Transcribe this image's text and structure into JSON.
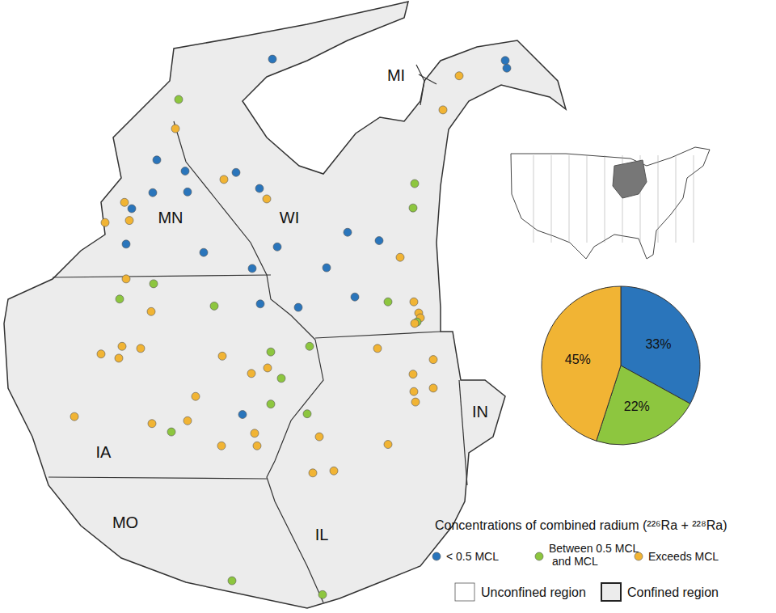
{
  "map": {
    "states": [
      "MN",
      "WI",
      "MI",
      "IA",
      "MO",
      "IL",
      "IN"
    ],
    "legend": {
      "title": "Concentrations of combined radium (²²⁶Ra + ²²⁸Ra)",
      "regions": [
        "Unconfined region",
        "Confined region"
      ]
    },
    "points": [
      {
        "lon": -92.26,
        "lat": 46.61,
        "class": 0
      },
      {
        "lon": -86.5,
        "lat": 46.59,
        "class": 0
      },
      {
        "lon": -86.46,
        "lat": 46.48,
        "class": 0
      },
      {
        "lon": -87.64,
        "lat": 46.37,
        "class": 2
      },
      {
        "lon": -94.58,
        "lat": 46.03,
        "class": 1
      },
      {
        "lon": -88.04,
        "lat": 45.88,
        "class": 2
      },
      {
        "lon": -94.66,
        "lat": 45.61,
        "class": 2
      },
      {
        "lon": -95.12,
        "lat": 45.16,
        "class": 0
      },
      {
        "lon": -93.16,
        "lat": 44.98,
        "class": 0
      },
      {
        "lon": -94.42,
        "lat": 45.0,
        "class": 0
      },
      {
        "lon": -93.46,
        "lat": 44.88,
        "class": 2
      },
      {
        "lon": -95.22,
        "lat": 44.69,
        "class": 0
      },
      {
        "lon": -92.58,
        "lat": 44.75,
        "class": 0
      },
      {
        "lon": -94.36,
        "lat": 44.7,
        "class": 0
      },
      {
        "lon": -92.4,
        "lat": 44.6,
        "class": 2
      },
      {
        "lon": -95.92,
        "lat": 44.55,
        "class": 2
      },
      {
        "lon": -95.74,
        "lat": 44.46,
        "class": 0
      },
      {
        "lon": -88.74,
        "lat": 44.82,
        "class": 1
      },
      {
        "lon": -88.78,
        "lat": 44.47,
        "class": 1
      },
      {
        "lon": -96.4,
        "lat": 44.26,
        "class": 2
      },
      {
        "lon": -95.8,
        "lat": 44.29,
        "class": 2
      },
      {
        "lon": -90.4,
        "lat": 44.12,
        "class": 0
      },
      {
        "lon": -95.88,
        "lat": 43.95,
        "class": 0
      },
      {
        "lon": -93.96,
        "lat": 43.83,
        "class": 0
      },
      {
        "lon": -92.14,
        "lat": 43.91,
        "class": 0
      },
      {
        "lon": -89.62,
        "lat": 44.0,
        "class": 0
      },
      {
        "lon": -89.1,
        "lat": 43.76,
        "class": 2
      },
      {
        "lon": -90.92,
        "lat": 43.61,
        "class": 0
      },
      {
        "lon": -92.76,
        "lat": 43.6,
        "class": 0
      },
      {
        "lon": -95.88,
        "lat": 43.45,
        "class": 2
      },
      {
        "lon": -95.2,
        "lat": 43.38,
        "class": 1
      },
      {
        "lon": -90.22,
        "lat": 43.19,
        "class": 0
      },
      {
        "lon": -89.4,
        "lat": 43.12,
        "class": 1
      },
      {
        "lon": -88.76,
        "lat": 43.12,
        "class": 2
      },
      {
        "lon": -96.04,
        "lat": 43.16,
        "class": 1
      },
      {
        "lon": -93.7,
        "lat": 43.06,
        "class": 1
      },
      {
        "lon": -92.56,
        "lat": 43.09,
        "class": 0
      },
      {
        "lon": -91.62,
        "lat": 43.04,
        "class": 0
      },
      {
        "lon": -95.26,
        "lat": 42.98,
        "class": 2
      },
      {
        "lon": -88.64,
        "lat": 42.96,
        "class": 2
      },
      {
        "lon": -88.6,
        "lat": 42.89,
        "class": 2
      },
      {
        "lon": -88.68,
        "lat": 42.83,
        "class": 1
      },
      {
        "lon": -88.74,
        "lat": 42.81,
        "class": 2
      },
      {
        "lon": -95.98,
        "lat": 42.48,
        "class": 2
      },
      {
        "lon": -95.52,
        "lat": 42.45,
        "class": 2
      },
      {
        "lon": -96.5,
        "lat": 42.37,
        "class": 2
      },
      {
        "lon": -96.06,
        "lat": 42.31,
        "class": 2
      },
      {
        "lon": -93.5,
        "lat": 42.34,
        "class": 2
      },
      {
        "lon": -92.3,
        "lat": 42.4,
        "class": 1
      },
      {
        "lon": -91.34,
        "lat": 42.48,
        "class": 1
      },
      {
        "lon": -89.66,
        "lat": 42.45,
        "class": 2
      },
      {
        "lon": -88.28,
        "lat": 42.29,
        "class": 2
      },
      {
        "lon": -92.38,
        "lat": 42.17,
        "class": 2
      },
      {
        "lon": -92.78,
        "lat": 42.09,
        "class": 2
      },
      {
        "lon": -88.78,
        "lat": 42.08,
        "class": 2
      },
      {
        "lon": -92.04,
        "lat": 42.02,
        "class": 1
      },
      {
        "lon": -88.28,
        "lat": 41.88,
        "class": 2
      },
      {
        "lon": -94.16,
        "lat": 41.76,
        "class": 2
      },
      {
        "lon": -88.76,
        "lat": 41.83,
        "class": 2
      },
      {
        "lon": -97.16,
        "lat": 41.47,
        "class": 2
      },
      {
        "lon": -95.24,
        "lat": 41.37,
        "class": 2
      },
      {
        "lon": -94.36,
        "lat": 41.41,
        "class": 2
      },
      {
        "lon": -94.76,
        "lat": 41.25,
        "class": 1
      },
      {
        "lon": -93.0,
        "lat": 41.5,
        "class": 0
      },
      {
        "lon": -92.3,
        "lat": 41.65,
        "class": 1
      },
      {
        "lon": -88.72,
        "lat": 41.68,
        "class": 2
      },
      {
        "lon": -91.4,
        "lat": 41.51,
        "class": 1
      },
      {
        "lon": -93.52,
        "lat": 41.05,
        "class": 2
      },
      {
        "lon": -92.64,
        "lat": 41.05,
        "class": 2
      },
      {
        "lon": -91.1,
        "lat": 41.18,
        "class": 2
      },
      {
        "lon": -92.7,
        "lat": 41.23,
        "class": 2
      },
      {
        "lon": -89.4,
        "lat": 41.07,
        "class": 2
      },
      {
        "lon": -91.26,
        "lat": 40.66,
        "class": 2
      },
      {
        "lon": -90.74,
        "lat": 40.69,
        "class": 2
      },
      {
        "lon": -93.26,
        "lat": 39.11,
        "class": 1
      },
      {
        "lon": -91.02,
        "lat": 38.91,
        "class": 1
      }
    ]
  },
  "chart_data": {
    "type": "pie",
    "categories": [
      "< 0.5 MCL",
      "Between 0.5 MCL and MCL",
      "Exceeds MCL"
    ],
    "values": [
      33,
      22,
      45
    ],
    "value_labels": [
      "33%",
      "22%",
      "45%"
    ],
    "colors": [
      "#2a75bb",
      "#8dc63f",
      "#f1b434"
    ],
    "data_labels": true
  }
}
